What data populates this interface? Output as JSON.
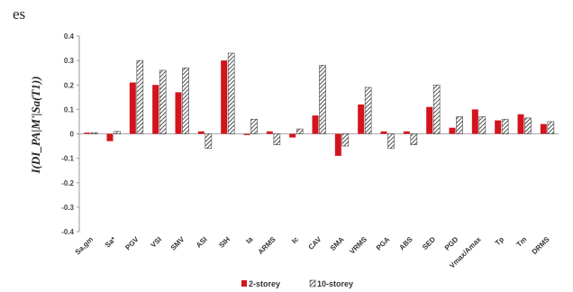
{
  "corner_text": "es",
  "chart_data": {
    "type": "bar",
    "ylabel": "I(DI_PA|M'|Sa(T1))",
    "ylim": [
      -0.4,
      0.4
    ],
    "yticks": [
      "0.4",
      "0.3",
      "0.2",
      "0.1",
      "0",
      "-0.1",
      "-0.2",
      "-0.3",
      "-0.4"
    ],
    "ytick_values": [
      0.4,
      0.3,
      0.2,
      0.1,
      0,
      -0.1,
      -0.2,
      -0.3,
      -0.4
    ],
    "categories": [
      "Sa,gm",
      "Sa*",
      "PGV",
      "VSI",
      "SMV",
      "ASI",
      "SIH",
      "Ia",
      "ARMS",
      "Ic",
      "CAV",
      "SMA",
      "VRMS",
      "PGA",
      "ABS",
      "SED",
      "PGD",
      "Vmax/Amax",
      "Tp",
      "Tm",
      "DRMS"
    ],
    "series": [
      {
        "name": "2-storey",
        "color": "#d4141c",
        "pattern": "solid",
        "values": [
          0.005,
          -0.03,
          0.21,
          0.2,
          0.17,
          0.01,
          0.3,
          -0.005,
          0.01,
          -0.015,
          0.075,
          -0.09,
          0.12,
          0.01,
          0.01,
          0.11,
          0.025,
          0.1,
          0.055,
          0.08,
          0.04
        ]
      },
      {
        "name": "10-storey",
        "color": "#333333",
        "pattern": "hatch",
        "values": [
          0.005,
          0.01,
          0.3,
          0.26,
          0.27,
          -0.06,
          0.33,
          0.06,
          -0.045,
          0.02,
          0.28,
          -0.05,
          0.19,
          -0.06,
          -0.045,
          0.2,
          0.07,
          0.07,
          0.06,
          0.065,
          0.05
        ]
      }
    ],
    "legend_position": "bottom-center",
    "grid": false
  }
}
